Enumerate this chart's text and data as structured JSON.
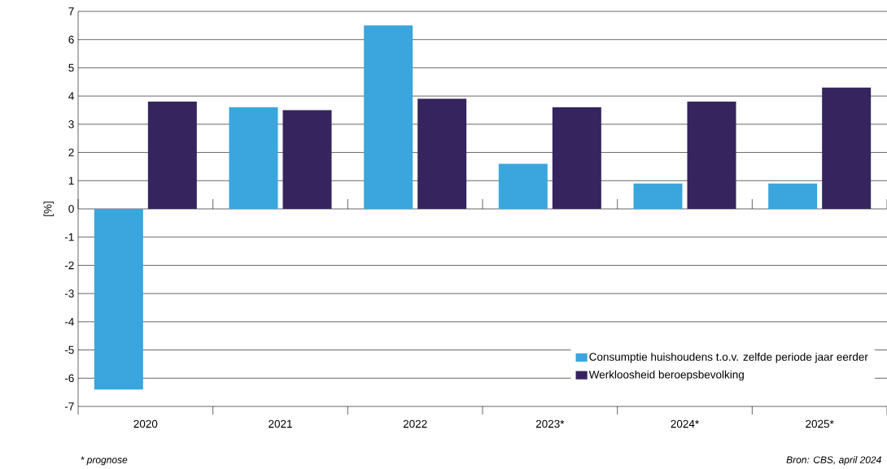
{
  "chart_data": {
    "type": "bar",
    "ylabel": "[%]",
    "categories": [
      "2020",
      "2021",
      "2022",
      "2023*",
      "2024*",
      "2025*"
    ],
    "series": [
      {
        "name": "Consumptie huishoudens t.o.v. zelfde periode jaar eerder",
        "color": "#3aa6dd",
        "values": [
          -6.4,
          3.6,
          6.5,
          1.6,
          0.9,
          0.9
        ]
      },
      {
        "name": "Werkloosheid beroepsbevolking",
        "color": "#35245e",
        "values": [
          3.8,
          3.5,
          3.9,
          3.6,
          3.8,
          4.3
        ]
      }
    ],
    "ylim": [
      -7,
      7
    ],
    "yticks": [
      -7,
      -6,
      -5,
      -4,
      -3,
      -2,
      -1,
      0,
      1,
      2,
      3,
      4,
      5,
      6,
      7
    ],
    "grid": "y",
    "legend": "bottom right",
    "annotations": [
      "* prognose",
      "Bron: CBS, april 2024"
    ]
  }
}
